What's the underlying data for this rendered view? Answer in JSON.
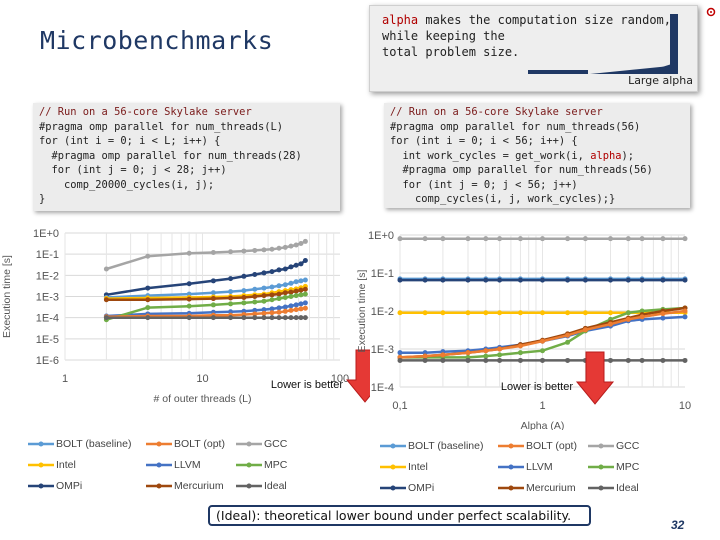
{
  "slide": {
    "title": "Microbenchmarks",
    "page_number": "32",
    "corner_icon": "logo-icon",
    "footnote": "(Ideal): theoretical lower bound under perfect scalability."
  },
  "callout": {
    "keyword": "alpha",
    "text_line1": " makes the computation size random,",
    "text_line2": "while keeping the",
    "text_line3": "total problem size.",
    "large_alpha_label": "Large alpha"
  },
  "code_left": {
    "lines": [
      "// Run on a 56-core Skylake server",
      "#pragma omp parallel for num_threads(L)",
      "for (int i = 0; i < L; i++) {",
      "  #pragma omp parallel for num_threads(28)",
      "  for (int j = 0; j < 28; j++)",
      "    comp_20000_cycles(i, j);",
      "}"
    ]
  },
  "code_right": {
    "lines": [
      "// Run on a 56-core Skylake server",
      "#pragma omp parallel for num_threads(56)",
      "for (int i = 0; i < 56; i++) {",
      "  int work_cycles = get_work(i, alpha);",
      "  #pragma omp parallel for num_threads(56)",
      "  for (int j = 0; j < 56; j++)",
      "    comp_cycles(i, j, work_cycles);}"
    ]
  },
  "legend": {
    "items": [
      {
        "name": "BOLT (baseline)",
        "color": "#5b9bd5"
      },
      {
        "name": "BOLT (opt)",
        "color": "#ed7d31"
      },
      {
        "name": "GCC",
        "color": "#a5a5a5"
      },
      {
        "name": "Intel",
        "color": "#ffc000"
      },
      {
        "name": "LLVM",
        "color": "#4472c4"
      },
      {
        "name": "MPC",
        "color": "#70ad47"
      },
      {
        "name": "OMPi",
        "color": "#264478"
      },
      {
        "name": "Mercurium",
        "color": "#9e480e"
      },
      {
        "name": "Ideal",
        "color": "#636363"
      }
    ]
  },
  "chart_data": [
    {
      "type": "line",
      "title": "",
      "xlabel": "# of outer threads (L)",
      "ylabel": "Execution time [s]",
      "xscale": "log",
      "yscale": "log",
      "xlim": [
        1,
        100
      ],
      "ylim": [
        1e-06,
        1
      ],
      "xticks": [
        "1",
        "10",
        "100"
      ],
      "yticks": [
        "1E+0",
        "1E-1",
        "1E-2",
        "1E-3",
        "1E-4",
        "1E-5",
        "1E-6"
      ],
      "annotation": "Lower is better",
      "legend_position": "bottom",
      "x": [
        2,
        4,
        8,
        12,
        16,
        20,
        24,
        28,
        32,
        36,
        40,
        44,
        48,
        52,
        56
      ],
      "series": [
        {
          "name": "GCC",
          "values": [
            0.02,
            0.08,
            0.11,
            0.12,
            0.13,
            0.14,
            0.15,
            0.16,
            0.17,
            0.19,
            0.21,
            0.24,
            0.27,
            0.32,
            0.4
          ]
        },
        {
          "name": "OMPi",
          "values": [
            0.0012,
            0.0025,
            0.004,
            0.0055,
            0.007,
            0.009,
            0.011,
            0.013,
            0.015,
            0.018,
            0.02,
            0.025,
            0.03,
            0.035,
            0.05
          ]
        },
        {
          "name": "BOLT (baseline)",
          "values": [
            0.0009,
            0.0011,
            0.0013,
            0.0015,
            0.0017,
            0.0019,
            0.0022,
            0.0025,
            0.0028,
            0.0032,
            0.0036,
            0.0042,
            0.005,
            0.0055,
            0.006
          ]
        },
        {
          "name": "Intel",
          "values": [
            0.0008,
            0.00085,
            0.0009,
            0.00095,
            0.001,
            0.0011,
            0.0012,
            0.0013,
            0.0015,
            0.0017,
            0.0019,
            0.0021,
            0.0023,
            0.0026,
            0.003
          ]
        },
        {
          "name": "Mercurium",
          "values": [
            0.0007,
            0.0007,
            0.00075,
            0.0008,
            0.00085,
            0.0009,
            0.001,
            0.0011,
            0.0012,
            0.0013,
            0.0015,
            0.0016,
            0.0018,
            0.002,
            0.0022
          ]
        },
        {
          "name": "LLVM",
          "values": [
            0.00012,
            0.00015,
            0.00016,
            0.00018,
            0.00019,
            0.0002,
            0.00022,
            0.00024,
            0.00026,
            0.00029,
            0.00032,
            0.00036,
            0.0004,
            0.00045,
            0.0005
          ]
        },
        {
          "name": "MPC",
          "values": [
            8e-05,
            0.0003,
            0.00035,
            0.0004,
            0.00045,
            0.0005,
            0.00055,
            0.0006,
            0.0007,
            0.0008,
            0.0009,
            0.001,
            0.0011,
            0.0012,
            0.0013
          ]
        },
        {
          "name": "BOLT (opt)",
          "values": [
            0.00011,
            0.00012,
            0.00012,
            0.00013,
            0.00013,
            0.00014,
            0.00015,
            0.00016,
            0.00017,
            0.00018,
            0.0002,
            0.00022,
            0.00024,
            0.00026,
            0.00028
          ]
        },
        {
          "name": "Ideal",
          "values": [
            0.0001,
            0.0001,
            0.0001,
            0.0001,
            0.0001,
            0.0001,
            0.0001,
            0.0001,
            0.0001,
            0.0001,
            0.0001,
            0.0001,
            0.0001,
            0.0001,
            0.0001
          ]
        }
      ]
    },
    {
      "type": "line",
      "title": "",
      "xlabel": "Alpha (A)",
      "ylabel": "Execution time [s]",
      "xscale": "log",
      "yscale": "log",
      "xlim": [
        0.1,
        10
      ],
      "ylim": [
        0.0001,
        1
      ],
      "xticks": [
        "0,1",
        "1",
        "10"
      ],
      "yticks": [
        "1E+0",
        "1E-1",
        "1E-2",
        "1E-3",
        "1E-4"
      ],
      "annotation": "Lower is better",
      "legend_position": "bottom",
      "x": [
        0.1,
        0.15,
        0.2,
        0.3,
        0.4,
        0.5,
        0.7,
        1,
        1.5,
        2,
        3,
        4,
        5,
        7,
        10
      ],
      "series": [
        {
          "name": "GCC",
          "values": [
            0.8,
            0.8,
            0.8,
            0.8,
            0.8,
            0.8,
            0.8,
            0.8,
            0.8,
            0.8,
            0.8,
            0.8,
            0.8,
            0.8,
            0.8
          ]
        },
        {
          "name": "BOLT (baseline)",
          "values": [
            0.07,
            0.07,
            0.07,
            0.07,
            0.07,
            0.07,
            0.07,
            0.07,
            0.07,
            0.07,
            0.07,
            0.07,
            0.07,
            0.07,
            0.07
          ]
        },
        {
          "name": "OMPi",
          "values": [
            0.065,
            0.065,
            0.065,
            0.065,
            0.065,
            0.065,
            0.065,
            0.065,
            0.065,
            0.065,
            0.065,
            0.065,
            0.065,
            0.065,
            0.065
          ]
        },
        {
          "name": "Intel",
          "values": [
            0.009,
            0.009,
            0.009,
            0.009,
            0.009,
            0.009,
            0.009,
            0.009,
            0.009,
            0.009,
            0.009,
            0.009,
            0.009,
            0.009,
            0.009
          ]
        },
        {
          "name": "LLVM",
          "values": [
            0.0008,
            0.0008,
            0.00085,
            0.0009,
            0.001,
            0.0011,
            0.0013,
            0.0016,
            0.0022,
            0.003,
            0.004,
            0.0055,
            0.006,
            0.0065,
            0.007
          ]
        },
        {
          "name": "MPC",
          "values": [
            0.0006,
            0.0006,
            0.0006,
            0.0006,
            0.00065,
            0.0007,
            0.0008,
            0.0009,
            0.0015,
            0.003,
            0.006,
            0.009,
            0.01,
            0.011,
            0.012
          ]
        },
        {
          "name": "Mercurium",
          "values": [
            0.0006,
            0.00065,
            0.0007,
            0.0008,
            0.0009,
            0.001,
            0.0013,
            0.0017,
            0.0025,
            0.0035,
            0.005,
            0.0065,
            0.008,
            0.01,
            0.012
          ]
        },
        {
          "name": "BOLT (opt)",
          "values": [
            0.0006,
            0.00065,
            0.0007,
            0.0008,
            0.0009,
            0.001,
            0.0012,
            0.0016,
            0.0023,
            0.0032,
            0.0045,
            0.006,
            0.007,
            0.0085,
            0.01
          ]
        },
        {
          "name": "Ideal",
          "values": [
            0.0005,
            0.0005,
            0.0005,
            0.0005,
            0.0005,
            0.0005,
            0.0005,
            0.0005,
            0.0005,
            0.0005,
            0.0005,
            0.0005,
            0.0005,
            0.0005,
            0.0005
          ]
        }
      ]
    }
  ]
}
